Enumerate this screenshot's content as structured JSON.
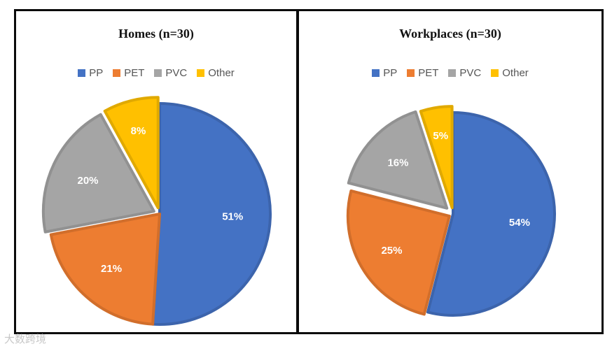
{
  "chart_data": [
    {
      "type": "pie",
      "title": "Homes (n=30)",
      "categories": [
        "PP",
        "PET",
        "PVC",
        "Other"
      ],
      "values": [
        51,
        21,
        20,
        8
      ],
      "labels": [
        "51%",
        "21%",
        "20%",
        "8%"
      ],
      "legend_position": "top",
      "colors": [
        "#4472c4",
        "#ed7d31",
        "#a5a5a5",
        "#ffc000"
      ]
    },
    {
      "type": "pie",
      "title": "Workplaces (n=30)",
      "categories": [
        "PP",
        "PET",
        "PVC",
        "Other"
      ],
      "values": [
        54,
        25,
        16,
        5
      ],
      "labels": [
        "54%",
        "25%",
        "16%",
        "5%"
      ],
      "legend_position": "top",
      "colors": [
        "#4472c4",
        "#ed7d31",
        "#a5a5a5",
        "#ffc000"
      ]
    }
  ],
  "watermark": "大数跨境"
}
